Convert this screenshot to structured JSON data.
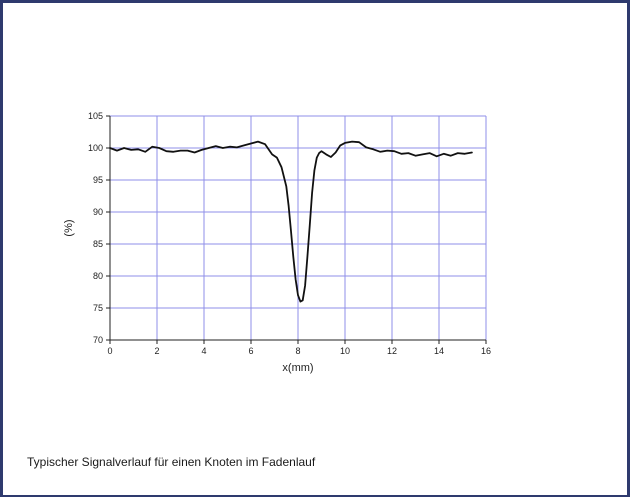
{
  "caption": "Typischer Signalverlauf für einen Knoten im Fadenlauf",
  "chart_data": {
    "type": "line",
    "title": "",
    "xlabel": "x(mm)",
    "ylabel": "(%)",
    "xlim": [
      0,
      16
    ],
    "ylim": [
      70,
      105
    ],
    "xticks": [
      0,
      2,
      4,
      6,
      8,
      10,
      12,
      14,
      16
    ],
    "yticks": [
      70,
      75,
      80,
      85,
      90,
      95,
      100,
      105
    ],
    "grid": true,
    "legend": "none",
    "colors": {
      "line": "#111111",
      "grid": "#8f8fe8",
      "axis": "#222222"
    },
    "series": [
      {
        "x": [
          0,
          0.3,
          0.6,
          0.9,
          1.2,
          1.5,
          1.8,
          2.1,
          2.4,
          2.7,
          3.0,
          3.3,
          3.6,
          3.9,
          4.2,
          4.5,
          4.8,
          5.1,
          5.4,
          5.7,
          6.0,
          6.3,
          6.6,
          6.9,
          7.1,
          7.3,
          7.5,
          7.6,
          7.7,
          7.8,
          7.9,
          8.0,
          8.1,
          8.2,
          8.3,
          8.4,
          8.5,
          8.6,
          8.7,
          8.8,
          8.9,
          9.0,
          9.2,
          9.4,
          9.6,
          9.8,
          10.0,
          10.3,
          10.6,
          10.9,
          11.2,
          11.5,
          11.8,
          12.1,
          12.4,
          12.7,
          13.0,
          13.3,
          13.6,
          13.9,
          14.2,
          14.5,
          14.8,
          15.1,
          15.4
        ],
        "y": [
          100.0,
          99.6,
          100.0,
          99.7,
          99.8,
          99.4,
          100.2,
          100.0,
          99.5,
          99.4,
          99.6,
          99.6,
          99.3,
          99.7,
          100.0,
          100.3,
          100.0,
          100.2,
          100.1,
          100.4,
          100.7,
          101.0,
          100.6,
          99.0,
          98.5,
          97.0,
          94.0,
          91.0,
          87.0,
          83.0,
          79.5,
          77.0,
          76.0,
          76.2,
          78.5,
          83.0,
          88.0,
          93.0,
          96.5,
          98.5,
          99.2,
          99.5,
          99.0,
          98.6,
          99.3,
          100.4,
          100.8,
          101.0,
          100.9,
          100.1,
          99.8,
          99.4,
          99.6,
          99.5,
          99.1,
          99.2,
          98.8,
          99.0,
          99.2,
          98.7,
          99.1,
          98.8,
          99.2,
          99.1,
          99.3
        ]
      }
    ]
  }
}
